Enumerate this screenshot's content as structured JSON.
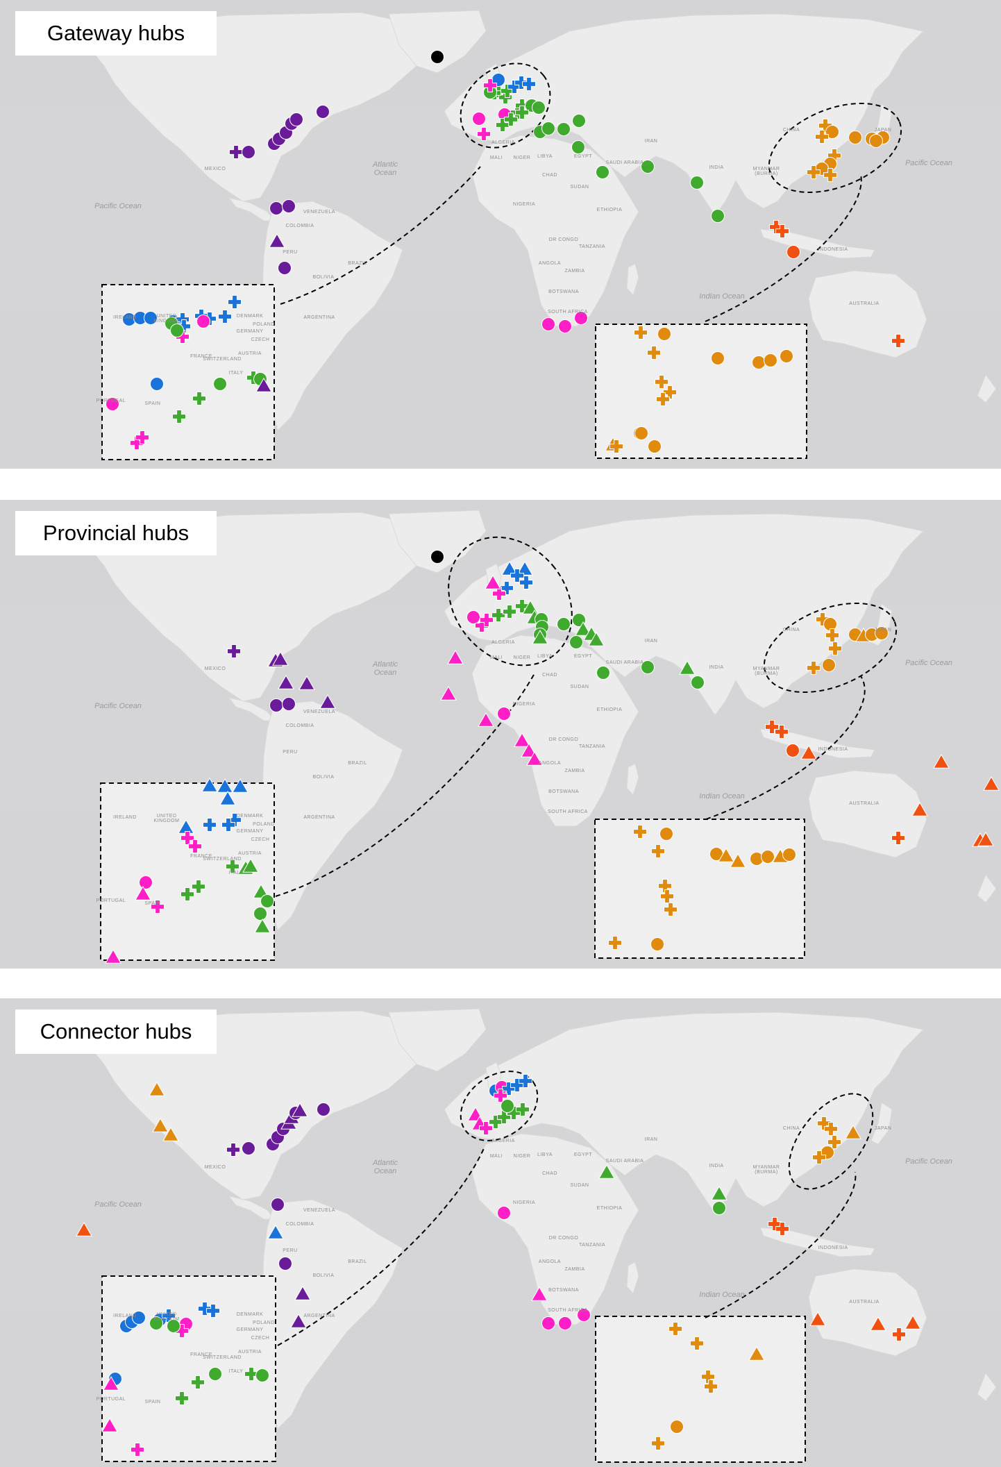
{
  "colors": {
    "ocean": "#d4d4d7",
    "land": "#ececec",
    "black": "#000000",
    "purple": "#6a1b9a",
    "blue": "#1a73d9",
    "green": "#3faa2e",
    "magenta": "#ff1fc7",
    "orange": "#e08a0e",
    "red_orange": "#f05010"
  },
  "legend_shapes": [
    "circle",
    "plus",
    "triangle"
  ],
  "panels": [
    {
      "title": "Gateway hubs"
    },
    {
      "title": "Provincial hubs"
    },
    {
      "title": "Connector hubs"
    }
  ],
  "map_labels": {
    "oceans": {
      "pacific_west": "Pacific Ocean",
      "atlantic": "Atlantic\nOcean",
      "pacific_east": "Pacific Ocean",
      "indian": "Indian Ocean"
    },
    "countries": {
      "mexico": "MEXICO",
      "colombia": "COLOMBIA",
      "venezuela": "VENEZUELA",
      "peru": "PERU",
      "brazil": "BRAZIL",
      "bolivia": "BOLIVIA",
      "argentina": "ARGENTINA",
      "mali": "MALI",
      "niger": "NIGER",
      "chad": "CHAD",
      "sudan": "SUDAN",
      "libya": "LIBYA",
      "egypt": "EGYPT",
      "algeria": "ALGERIA",
      "nigeria": "NIGERIA",
      "ethiopia": "ETHIOPIA",
      "dr_congo": "DR CONGO",
      "tanzania": "TANZANIA",
      "angola": "ANGOLA",
      "zambia": "ZAMBIA",
      "botswana": "BOTSWANA",
      "south_africa": "SOUTH AFRICA",
      "saudi_arabia": "SAUDI ARABIA",
      "iran": "IRAN",
      "india": "INDIA",
      "china": "CHINA",
      "myanmar_burma": "MYANMAR\n(BURMA)",
      "indonesia": "INDONESIA",
      "australia": "AUSTRALIA",
      "france": "FRANCE",
      "spain": "SPAIN",
      "portugal": "PORTUGAL",
      "germany": "GERMANY",
      "austria": "AUSTRIA",
      "switzerland": "SWITZERLAND",
      "italy": "ITALY",
      "poland": "POLAND",
      "czech": "CZECH",
      "denmark": "DENMARK",
      "ireland": "IRELAND",
      "united_kingdom": "UNITED\nKINGDOM",
      "japan": "JAPAN"
    }
  }
}
